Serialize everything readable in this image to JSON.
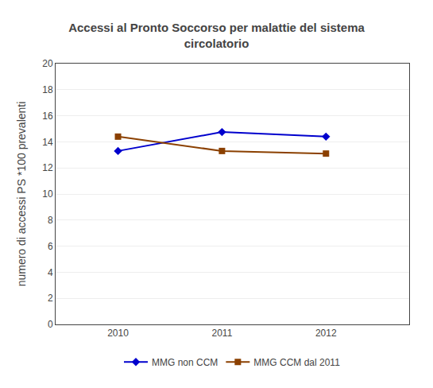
{
  "chart_data": {
    "type": "line",
    "title": "Accessi al Pronto Soccorso per malattie del sistema\ncircolatorio",
    "ylabel": "numero di accessi PS *100 prevalenti",
    "x": [
      2010,
      2011,
      2012
    ],
    "series": [
      {
        "name": "MMG non CCM",
        "values": [
          13.3,
          14.75,
          14.4
        ],
        "color": "#0000CD",
        "marker": "diamond"
      },
      {
        "name": "MMG CCM dal 2011",
        "values": [
          14.4,
          13.3,
          13.1
        ],
        "color": "#8B4000",
        "marker": "square"
      }
    ],
    "xlim": [
      2009.4,
      2012.8
    ],
    "xticks": [
      2010,
      2011,
      2012
    ],
    "ylim": [
      0,
      20
    ],
    "yticks": [
      0,
      2,
      4,
      6,
      8,
      10,
      12,
      14,
      16,
      18,
      20
    ],
    "grid": "y",
    "legend": "bottom"
  }
}
